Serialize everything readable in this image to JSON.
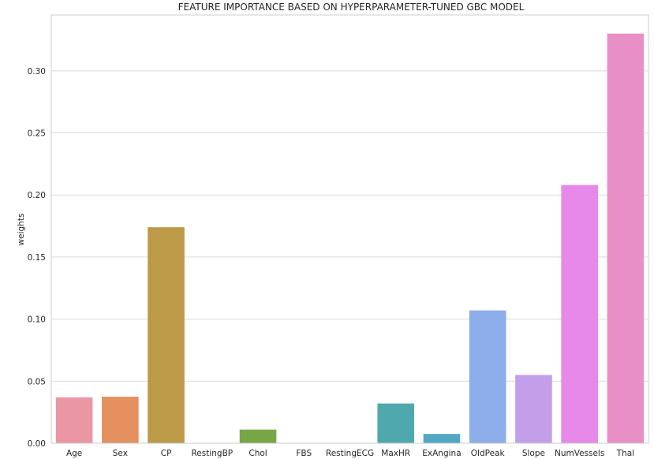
{
  "chart_data": {
    "type": "bar",
    "title": "FEATURE IMPORTANCE BASED ON HYPERPARAMETER-TUNED GBC MODEL",
    "xlabel": "",
    "ylabel": "weights",
    "categories": [
      "Age",
      "Sex",
      "CP",
      "RestingBP",
      "Chol",
      "FBS",
      "RestingECG",
      "MaxHR",
      "ExAngina",
      "OldPeak",
      "Slope",
      "NumVessels",
      "Thal"
    ],
    "values": [
      0.037,
      0.0375,
      0.174,
      0.0,
      0.011,
      0.0,
      0.0,
      0.032,
      0.0075,
      0.107,
      0.055,
      0.208,
      0.33
    ],
    "colors": [
      "#ea96a3",
      "#e5905f",
      "#bd9a48",
      "#9aa847",
      "#78a647",
      "#4fac70",
      "#50aa91",
      "#4fa9ac",
      "#51a8c3",
      "#8cadea",
      "#c29fe8",
      "#e689e9",
      "#e890c5"
    ],
    "ylim": [
      0,
      0.345
    ],
    "yticks": [
      0.0,
      0.05,
      0.1,
      0.15,
      0.2,
      0.25,
      0.3
    ],
    "ytick_labels": [
      "0.00",
      "0.05",
      "0.10",
      "0.15",
      "0.20",
      "0.25",
      "0.30"
    ],
    "grid": true,
    "legend": "none"
  }
}
